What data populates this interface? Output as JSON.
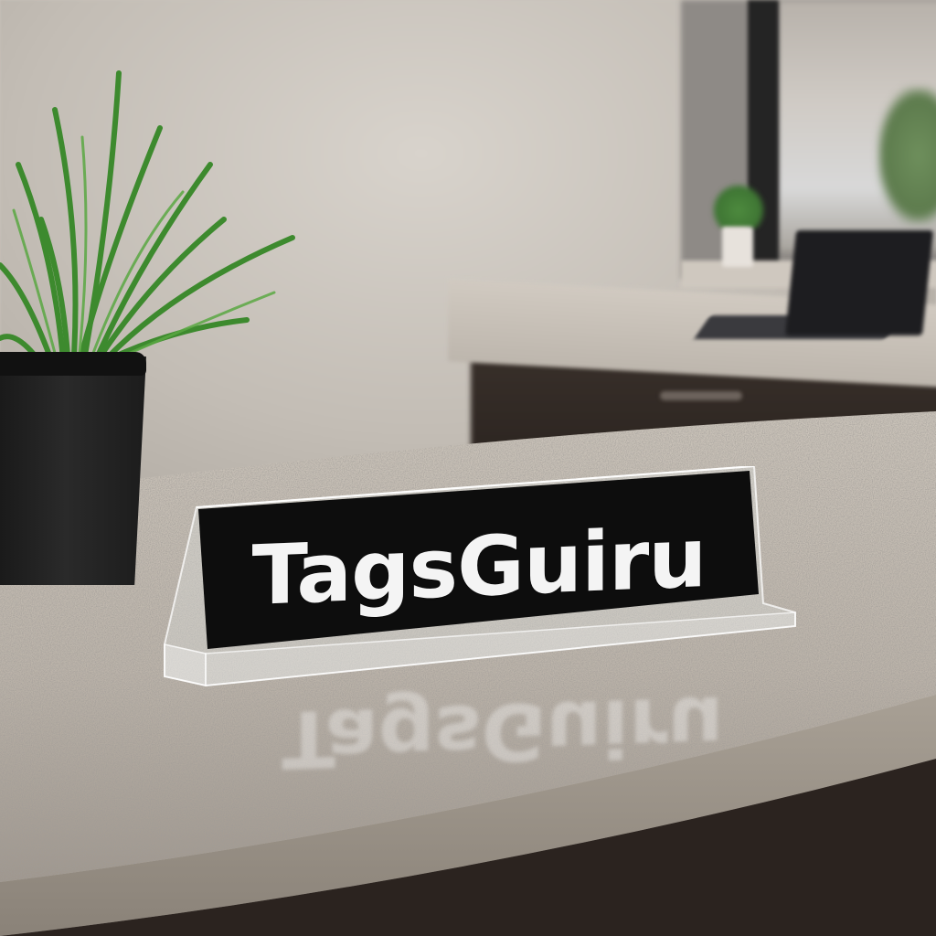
{
  "scene": {
    "plate_text": "TagsGuiru",
    "reflection_text": "TagsGuiru"
  },
  "colors": {
    "wall": "#c3bdb5",
    "countertop": "#bdb5ab",
    "plate_background": "#0d0d0d",
    "plate_text": "#f4f4f4",
    "pot": "#1c1c1c",
    "plant_leaves": "#3d8a2e",
    "cabinet": "#2a231f"
  },
  "icons": {
    "plant": "potted-grass-plant",
    "laptop": "laptop",
    "window": "window"
  }
}
